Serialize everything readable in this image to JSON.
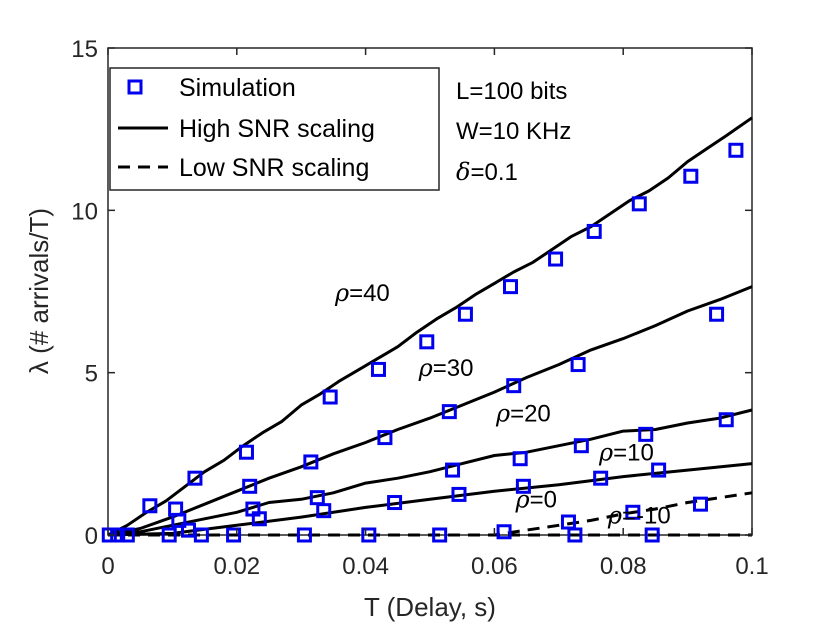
{
  "chart_data": {
    "type": "line",
    "title": "",
    "xlabel": "T (Delay, s)",
    "ylabel": "λ (# arrivals/T)",
    "xlim": [
      0,
      0.1
    ],
    "ylim": [
      0,
      15
    ],
    "xticks": [
      0,
      0.02,
      0.04,
      0.06,
      0.08,
      0.1
    ],
    "xtick_labels": [
      "0",
      "0.02",
      "0.04",
      "0.06",
      "0.08",
      "0.1"
    ],
    "yticks": [
      0,
      5,
      10,
      15
    ],
    "ytick_labels": [
      "0",
      "5",
      "10",
      "15"
    ],
    "grid": false,
    "legend": {
      "placement": "top-left",
      "entries": [
        {
          "label": "Simulation",
          "style": "square-marker",
          "color": "#0000ee"
        },
        {
          "label": "High SNR scaling",
          "style": "solid",
          "color": "#000000"
        },
        {
          "label": "Low SNR scaling",
          "style": "dashed",
          "color": "#000000"
        }
      ]
    },
    "params_text": {
      "line1": "L=100 bits",
      "line2": "W=10 KHz",
      "line3_symbol": "δ",
      "line3_value": "=0.1"
    },
    "series": [
      {
        "name": "ρ=40 high SNR",
        "style": "solid",
        "x": [
          0,
          0.003,
          0.006,
          0.009,
          0.012,
          0.015,
          0.018,
          0.021,
          0.024,
          0.027,
          0.03,
          0.033,
          0.036,
          0.039,
          0.042,
          0.045,
          0.048,
          0.051,
          0.054,
          0.057,
          0.06,
          0.063,
          0.066,
          0.069,
          0.072,
          0.075,
          0.078,
          0.081,
          0.084,
          0.087,
          0.09,
          0.093,
          0.096,
          0.1
        ],
        "y": [
          0,
          0.3,
          0.7,
          1.05,
          1.5,
          1.95,
          2.3,
          2.75,
          3.15,
          3.5,
          4.0,
          4.35,
          4.75,
          5.1,
          5.45,
          5.8,
          6.25,
          6.65,
          7.0,
          7.4,
          7.75,
          8.1,
          8.4,
          8.8,
          9.2,
          9.5,
          9.9,
          10.3,
          10.6,
          11.0,
          11.5,
          11.9,
          12.3,
          12.85
        ]
      },
      {
        "name": "ρ=30 high SNR",
        "style": "solid",
        "x": [
          0,
          0.005,
          0.01,
          0.015,
          0.02,
          0.025,
          0.03,
          0.035,
          0.04,
          0.045,
          0.05,
          0.055,
          0.06,
          0.065,
          0.07,
          0.075,
          0.08,
          0.085,
          0.09,
          0.095,
          0.1
        ],
        "y": [
          0,
          0.2,
          0.55,
          0.95,
          1.35,
          1.75,
          2.1,
          2.5,
          2.85,
          3.25,
          3.6,
          4.0,
          4.4,
          4.85,
          5.25,
          5.7,
          6.05,
          6.45,
          6.9,
          7.25,
          7.65
        ]
      },
      {
        "name": "ρ=20 high SNR",
        "style": "solid",
        "x": [
          0,
          0.005,
          0.01,
          0.015,
          0.02,
          0.025,
          0.03,
          0.035,
          0.04,
          0.045,
          0.05,
          0.055,
          0.06,
          0.065,
          0.07,
          0.075,
          0.08,
          0.085,
          0.09,
          0.095,
          0.1
        ],
        "y": [
          0,
          0.1,
          0.3,
          0.5,
          0.7,
          1.0,
          1.1,
          1.3,
          1.6,
          1.75,
          1.95,
          2.2,
          2.45,
          2.55,
          2.75,
          2.95,
          3.2,
          3.25,
          3.45,
          3.6,
          3.85
        ]
      },
      {
        "name": "ρ=10 high SNR",
        "style": "solid",
        "x": [
          0,
          0.01,
          0.02,
          0.03,
          0.04,
          0.05,
          0.06,
          0.07,
          0.08,
          0.09,
          0.1
        ],
        "y": [
          0,
          0.05,
          0.3,
          0.55,
          0.85,
          1.1,
          1.35,
          1.55,
          1.8,
          2.0,
          2.2
        ]
      },
      {
        "name": "ρ=0 low SNR",
        "style": "dashed",
        "x": [
          0,
          0.06,
          0.065,
          0.07,
          0.075,
          0.08,
          0.085,
          0.09,
          0.095,
          0.1
        ],
        "y": [
          0,
          0,
          0.15,
          0.3,
          0.45,
          0.65,
          0.8,
          1.0,
          1.15,
          1.3
        ]
      },
      {
        "name": "ρ=-10 low SNR",
        "style": "dashed",
        "x": [
          0,
          0.1
        ],
        "y": [
          0,
          0
        ]
      },
      {
        "name": "Simulation",
        "style": "square-marker",
        "x": [
          0.0002,
          0.0015,
          0.003,
          0.0065,
          0.0095,
          0.0105,
          0.011,
          0.0125,
          0.0135,
          0.0145,
          0.0195,
          0.0215,
          0.022,
          0.0225,
          0.0235,
          0.0305,
          0.0315,
          0.0325,
          0.0335,
          0.0345,
          0.0405,
          0.042,
          0.043,
          0.0445,
          0.0495,
          0.0515,
          0.053,
          0.0535,
          0.0545,
          0.0555,
          0.0615,
          0.0625,
          0.063,
          0.064,
          0.0645,
          0.0695,
          0.0715,
          0.0725,
          0.073,
          0.0735,
          0.0755,
          0.0765,
          0.0815,
          0.0825,
          0.0835,
          0.0845,
          0.0855,
          0.0905,
          0.092,
          0.0945,
          0.096,
          0.0975
        ],
        "y": [
          0.0,
          0.0,
          0.0,
          0.9,
          0.0,
          0.8,
          0.45,
          0.15,
          1.75,
          0.0,
          0.0,
          2.55,
          1.5,
          0.8,
          0.5,
          0.0,
          2.25,
          1.15,
          0.75,
          4.25,
          0.0,
          5.1,
          3.0,
          1.0,
          5.95,
          0.0,
          3.8,
          2.0,
          1.25,
          6.8,
          0.1,
          7.65,
          4.6,
          2.35,
          1.5,
          8.5,
          0.4,
          0.0,
          5.25,
          2.75,
          9.35,
          1.75,
          0.7,
          10.2,
          3.1,
          0.0,
          2.0,
          11.05,
          0.95,
          6.8,
          3.55,
          11.85
        ]
      }
    ],
    "annotations": [
      {
        "symbol": "ρ",
        "text": "=40",
        "x": 0.0395,
        "y": 7.2
      },
      {
        "symbol": "ρ",
        "text": "=30",
        "x": 0.0525,
        "y": 4.9
      },
      {
        "symbol": "ρ",
        "text": "=20",
        "x": 0.0645,
        "y": 3.5
      },
      {
        "symbol": "ρ",
        "text": "=10",
        "x": 0.0805,
        "y": 2.3
      },
      {
        "symbol": "ρ",
        "text": "=0",
        "x": 0.0665,
        "y": 0.85
      },
      {
        "symbol": "ρ",
        "text": "=-10",
        "x": 0.0825,
        "y": 0.35
      }
    ]
  }
}
